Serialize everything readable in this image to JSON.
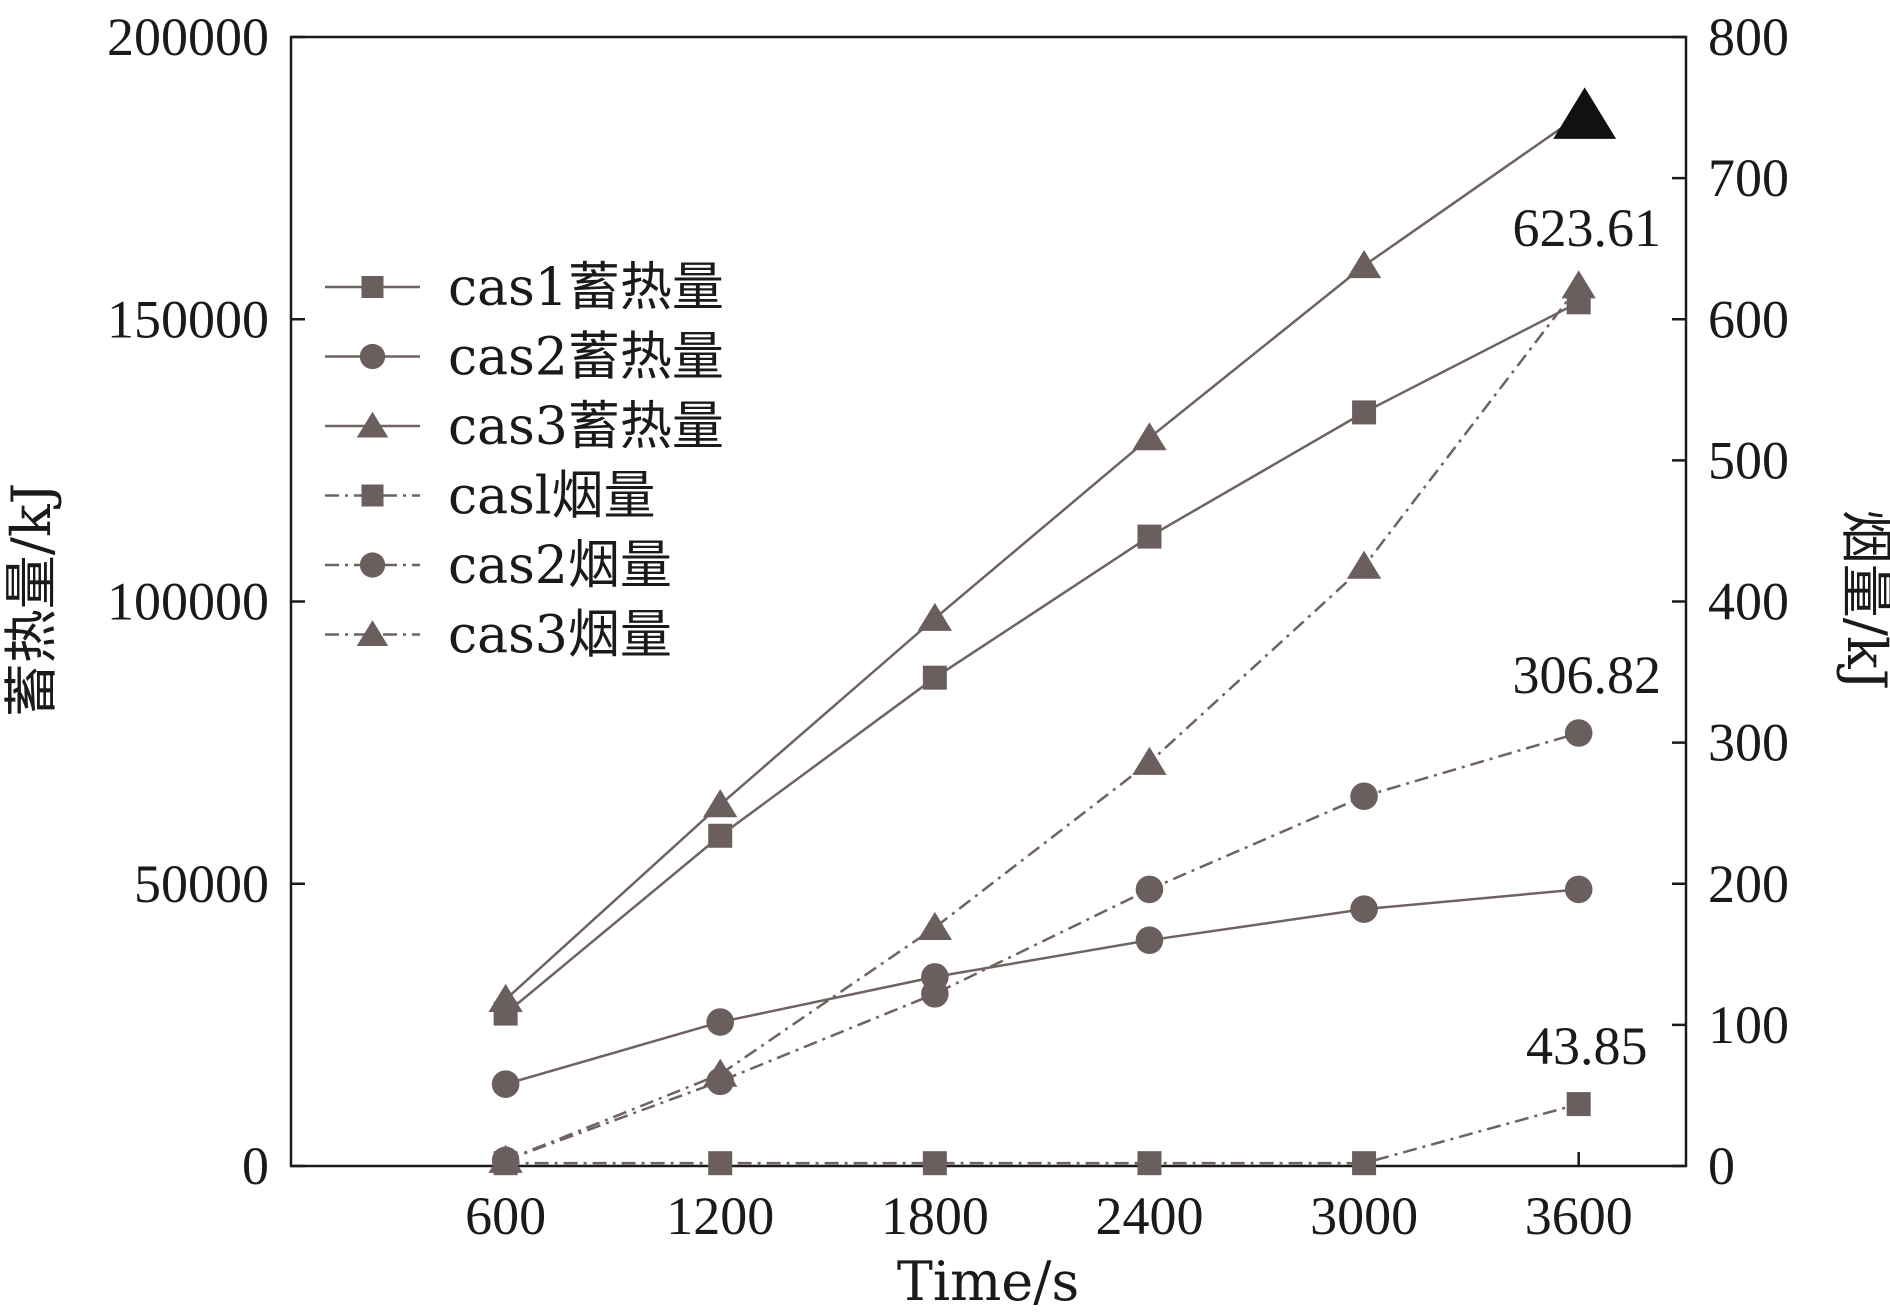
{
  "chart_data": {
    "type": "line",
    "xlabel": "Time/s",
    "ylabel_left": "蓄热量/kJ",
    "ylabel_right": "烟量/kJ",
    "x": [
      600,
      1200,
      1800,
      2400,
      3000,
      3600
    ],
    "x_ticks": [
      "600",
      "1200",
      "1800",
      "2400",
      "3000",
      "3600"
    ],
    "xlim": [
      0,
      3900
    ],
    "ylim_left": [
      0,
      200000
    ],
    "ylim_right": [
      0,
      800
    ],
    "yticks_left": [
      "0",
      "50000",
      "100000",
      "150000",
      "200000"
    ],
    "yticks_right": [
      "0",
      "100",
      "200",
      "300",
      "400",
      "500",
      "600",
      "700",
      "800"
    ],
    "grid": false,
    "legend_position": "upper-left",
    "series": [
      {
        "name": "cas1蓄热量",
        "axis": "left",
        "marker": "square",
        "style": "solid",
        "values": [
          27000,
          58500,
          86500,
          111500,
          133500,
          153000
        ]
      },
      {
        "name": "cas2蓄热量",
        "axis": "left",
        "marker": "circle",
        "style": "solid",
        "values": [
          14500,
          25500,
          33500,
          40000,
          45500,
          49000
        ]
      },
      {
        "name": "cas3蓄热量",
        "axis": "left",
        "marker": "triangle",
        "style": "solid",
        "values": [
          29500,
          64000,
          97000,
          129000,
          159500,
          186000
        ]
      },
      {
        "name": "casl烟量",
        "axis": "right",
        "marker": "square",
        "style": "dashdot",
        "values": [
          2,
          2,
          2,
          2,
          2,
          43.85
        ]
      },
      {
        "name": "cas2烟量",
        "axis": "right",
        "marker": "circle",
        "style": "dashdot",
        "values": [
          4,
          60,
          122,
          196,
          262,
          306.82
        ]
      },
      {
        "name": "cas3烟量",
        "axis": "right",
        "marker": "triangle",
        "style": "dashdot",
        "values": [
          4,
          65,
          169,
          286,
          425,
          623.61
        ]
      }
    ],
    "annotations": [
      {
        "text": "623.61",
        "series": 5
      },
      {
        "text": "306.82",
        "series": 4
      },
      {
        "text": "43.85",
        "series": 3
      }
    ],
    "colors": {
      "series": "#6f6361",
      "marker": "#6a5f5e",
      "axis": "#1a1a1a",
      "highlight": "#111111"
    }
  }
}
